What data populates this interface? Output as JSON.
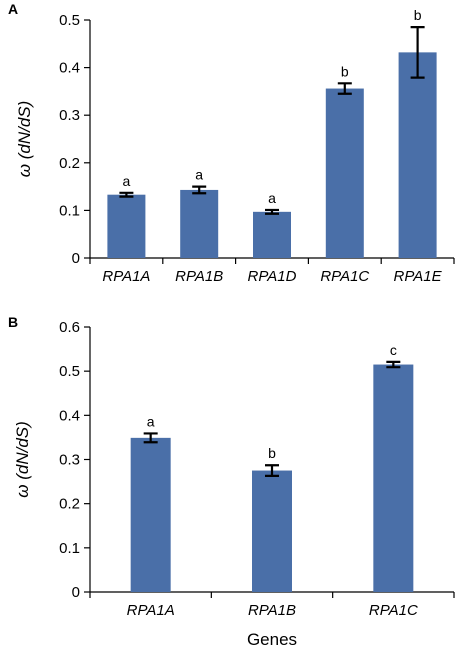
{
  "colors": {
    "bar": "#4a6fa8"
  },
  "chart_data": [
    {
      "type": "bar",
      "panel_label": "A",
      "categories": [
        "RPA1A",
        "RPA1B",
        "RPA1D",
        "RPA1C",
        "RPA1E"
      ],
      "values": [
        0.133,
        0.143,
        0.097,
        0.356,
        0.432
      ],
      "errors": [
        0.004,
        0.007,
        0.004,
        0.011,
        0.053
      ],
      "significance": [
        "a",
        "a",
        "a",
        "b",
        "b"
      ],
      "title": "",
      "xlabel": "",
      "ylabel": "ω (dN/dS)",
      "ylim": [
        0,
        0.5
      ],
      "yticks": [
        "0",
        "0.1",
        "0.2",
        "0.3",
        "0.4",
        "0.5"
      ],
      "grid": false,
      "legend": "none"
    },
    {
      "type": "bar",
      "panel_label": "B",
      "categories": [
        "RPA1A",
        "RPA1B",
        "RPA1C"
      ],
      "values": [
        0.349,
        0.275,
        0.515
      ],
      "errors": [
        0.01,
        0.012,
        0.006
      ],
      "significance": [
        "a",
        "b",
        "c"
      ],
      "title": "",
      "xlabel": "Genes",
      "ylabel": "ω (dN/dS)",
      "ylim": [
        0,
        0.6
      ],
      "yticks": [
        "0",
        "0.1",
        "0.2",
        "0.3",
        "0.4",
        "0.5",
        "0.6"
      ],
      "grid": false,
      "legend": "none"
    }
  ]
}
